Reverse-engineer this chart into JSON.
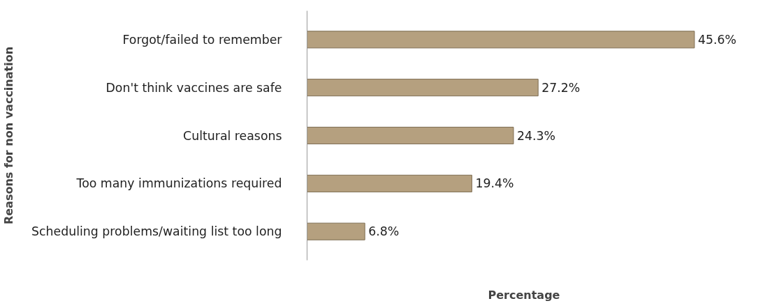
{
  "chart_data": {
    "type": "bar",
    "orientation": "horizontal",
    "xlabel": "Percentage",
    "ylabel": "Reasons for non vaccination",
    "categories": [
      "Forgot/failed to remember",
      "Don't think vaccines are safe",
      "Cultural reasons",
      "Too many immunizations required",
      "Scheduling problems/waiting list too long"
    ],
    "values": [
      45.6,
      27.2,
      24.3,
      19.4,
      6.8
    ],
    "value_labels": [
      "45.6%",
      "27.2%",
      "24.3%",
      "19.4%",
      "6.8%"
    ],
    "color": "#b5a07f",
    "grid": false,
    "tick_labels": "y"
  }
}
